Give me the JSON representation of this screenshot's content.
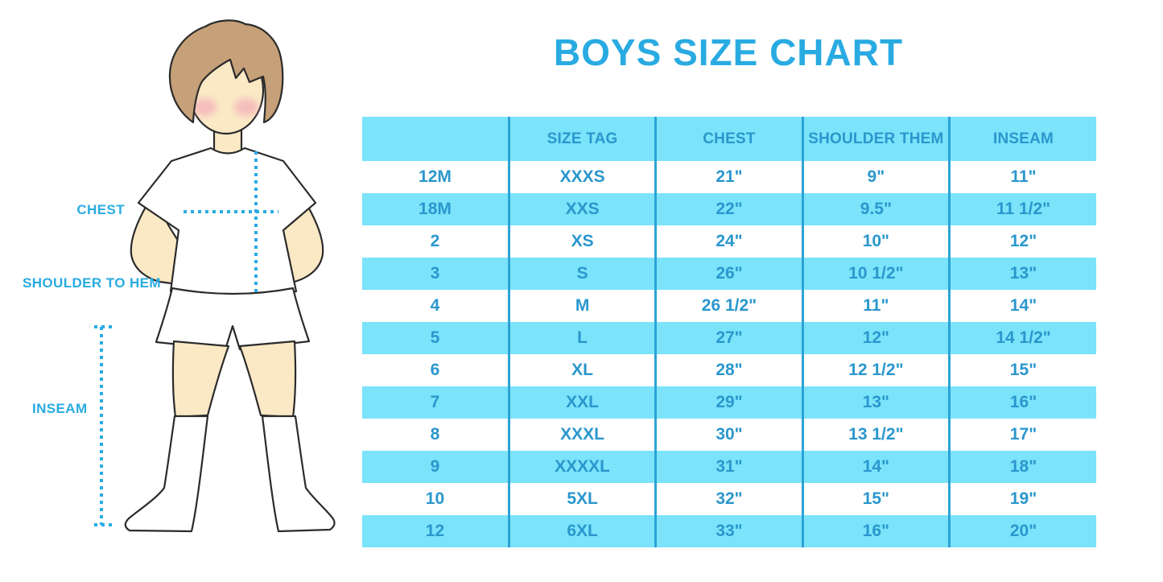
{
  "title": "BOYS SIZE CHART",
  "colors": {
    "accent": "#29ABE2",
    "table_fill": "#7BE3FA",
    "table_line": "#2BA3D6",
    "table_text": "#2A97CD",
    "hair": "#C6A078",
    "skin": "#FBE8C5",
    "blush": "#F2A8B8"
  },
  "diagram": {
    "labels": {
      "chest": "CHEST",
      "shoulder_to_hem": "SHOULDER TO HEM",
      "inseam": "INSEAM"
    }
  },
  "chart_data": {
    "type": "table",
    "title": "BOYS SIZE CHART",
    "columns": [
      "",
      "SIZE TAG",
      "CHEST",
      "SHOULDER THEM",
      "INSEAM"
    ],
    "rows": [
      [
        "12M",
        "XXXS",
        "21\"",
        "9\"",
        "11\""
      ],
      [
        "18M",
        "XXS",
        "22\"",
        "9.5\"",
        "11 1/2\""
      ],
      [
        "2",
        "XS",
        "24\"",
        "10\"",
        "12\""
      ],
      [
        "3",
        "S",
        "26\"",
        "10 1/2\"",
        "13\""
      ],
      [
        "4",
        "M",
        "26 1/2\"",
        "11\"",
        "14\""
      ],
      [
        "5",
        "L",
        "27\"",
        "12\"",
        "14 1/2\""
      ],
      [
        "6",
        "XL",
        "28\"",
        "12 1/2\"",
        "15\""
      ],
      [
        "7",
        "XXL",
        "29\"",
        "13\"",
        "16\""
      ],
      [
        "8",
        "XXXL",
        "30\"",
        "13 1/2\"",
        "17\""
      ],
      [
        "9",
        "XXXXL",
        "31\"",
        "14\"",
        "18\""
      ],
      [
        "10",
        "5XL",
        "32\"",
        "15\"",
        "19\""
      ],
      [
        "12",
        "6XL",
        "33\"",
        "16\"",
        "20\""
      ]
    ],
    "row_shading": "alternate starting with header",
    "legend_position": "none",
    "grid": "vertical dividers only"
  }
}
